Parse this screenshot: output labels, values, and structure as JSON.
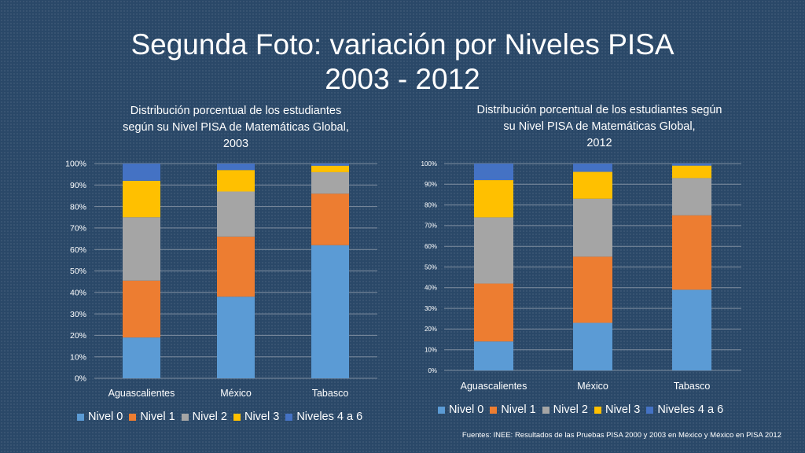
{
  "slide": {
    "title_line1": "Segunda Foto: variación por Niveles PISA",
    "title_line2": "2003 - 2012",
    "source": "Fuentes: INEE: Resultados de las Pruebas PISA 2000 y 2003 en México y México en PISA 2012"
  },
  "colors": {
    "Nivel 0": "#5b9bd5",
    "Nivel 1": "#ed7d31",
    "Nivel 2": "#a5a5a5",
    "Nivel 3": "#ffc000",
    "Niveles 4 a 6": "#4472c4"
  },
  "chart_data": [
    {
      "type": "bar",
      "stacked": true,
      "title": "Distribución porcentual de los estudiantes\nsegún su Nivel PISA de Matemáticas Global,\n2003",
      "categories": [
        "Aguascalientes",
        "México",
        "Tabasco"
      ],
      "ylim": [
        0,
        100
      ],
      "yticks": [
        "0%",
        "10%",
        "20%",
        "30%",
        "40%",
        "50%",
        "60%",
        "70%",
        "80%",
        "90%",
        "100%"
      ],
      "grid": true,
      "legend_position": "bottom",
      "series": [
        {
          "name": "Nivel 0",
          "values": [
            19,
            38,
            62
          ]
        },
        {
          "name": "Nivel 1",
          "values": [
            26.5,
            28,
            24
          ]
        },
        {
          "name": "Nivel 2",
          "values": [
            29.5,
            21,
            10
          ]
        },
        {
          "name": "Nivel 3",
          "values": [
            17,
            10,
            3
          ]
        },
        {
          "name": "Niveles 4 a 6",
          "values": [
            8,
            3,
            1
          ]
        }
      ]
    },
    {
      "type": "bar",
      "stacked": true,
      "title": "Distribución porcentual de los estudiantes según\nsu Nivel PISA de Matemáticas Global,\n2012",
      "categories": [
        "Aguascalientes",
        "México",
        "Tabasco"
      ],
      "ylim": [
        0,
        100
      ],
      "yticks": [
        "0%",
        "10%",
        "20%",
        "30%",
        "40%",
        "50%",
        "60%",
        "70%",
        "80%",
        "90%",
        "100%"
      ],
      "grid": true,
      "legend_position": "bottom",
      "series": [
        {
          "name": "Nivel 0",
          "values": [
            14,
            23,
            39
          ]
        },
        {
          "name": "Nivel 1",
          "values": [
            28,
            32,
            36
          ]
        },
        {
          "name": "Nivel 2",
          "values": [
            32,
            28,
            18
          ]
        },
        {
          "name": "Nivel 3",
          "values": [
            18,
            13,
            6
          ]
        },
        {
          "name": "Niveles 4 a 6",
          "values": [
            8,
            4,
            1
          ]
        }
      ]
    }
  ]
}
